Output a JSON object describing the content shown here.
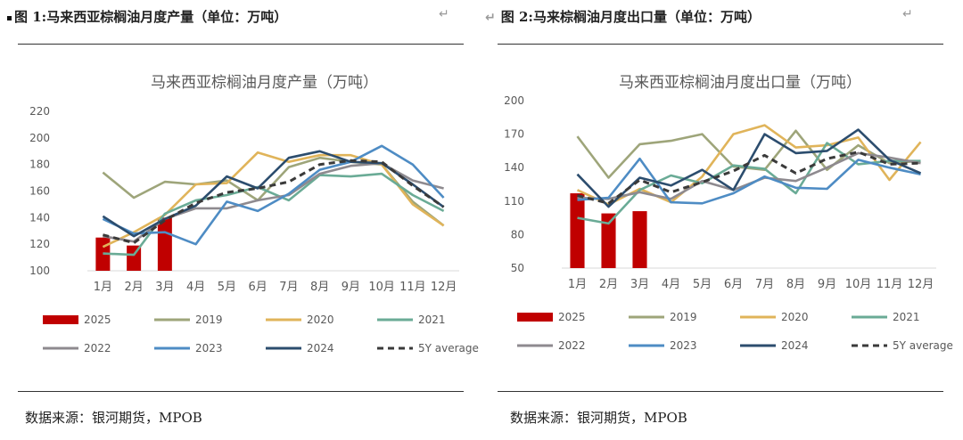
{
  "left": {
    "fig_label": "图 1:",
    "fig_title": "马来西亚棕榈油月度产量（单位：万吨）",
    "source": "数据来源：银河期货，MPOB",
    "ret_mark": "↵"
  },
  "right": {
    "fig_label": "图 2:",
    "fig_title": "马来棕榈油月度出口量（单位：万吨）",
    "source": "数据来源：银河期货，MPOB",
    "ret_mark": "↵"
  },
  "chart_data": [
    {
      "type": "line",
      "title": "马来西亚棕榈油月度产量（万吨）",
      "categories": [
        "1月",
        "2月",
        "3月",
        "4月",
        "5月",
        "6月",
        "7月",
        "8月",
        "9月",
        "10月",
        "11月",
        "12月"
      ],
      "ylim": [
        100,
        220
      ],
      "yticks": [
        100,
        120,
        140,
        160,
        180,
        200,
        220
      ],
      "grid": false,
      "legend_position": "bottom",
      "series": [
        {
          "name": "2025",
          "kind": "bar",
          "color": "#c00000",
          "values": [
            125,
            119,
            140,
            null,
            null,
            null,
            null,
            null,
            null,
            null,
            null,
            null
          ]
        },
        {
          "name": "2019",
          "kind": "line",
          "color": "#9ea57a",
          "values": [
            174,
            155,
            167,
            165,
            168,
            153,
            178,
            185,
            182,
            180,
            152,
            134
          ]
        },
        {
          "name": "2020",
          "kind": "line",
          "color": "#e0b45a",
          "values": [
            118,
            129,
            142,
            165,
            166,
            189,
            182,
            187,
            187,
            180,
            150,
            134
          ]
        },
        {
          "name": "2021",
          "kind": "line",
          "color": "#6aab96",
          "values": [
            113,
            112,
            143,
            153,
            157,
            163,
            153,
            172,
            171,
            173,
            157,
            145
          ]
        },
        {
          "name": "2022",
          "kind": "line",
          "color": "#8e8a8f",
          "values": [
            126,
            122,
            139,
            147,
            147,
            153,
            157,
            173,
            179,
            181,
            168,
            162
          ]
        },
        {
          "name": "2023",
          "kind": "line",
          "color": "#4e8cc4",
          "values": [
            139,
            128,
            129,
            120,
            152,
            145,
            158,
            176,
            182,
            194,
            180,
            155
          ]
        },
        {
          "name": "2024",
          "kind": "line",
          "color": "#2c4d6e",
          "values": [
            141,
            126,
            139,
            149,
            171,
            162,
            185,
            190,
            182,
            181,
            165,
            148
          ]
        },
        {
          "name": "5Y average",
          "kind": "dash",
          "color": "#3a3a3a",
          "values": [
            127,
            121,
            138,
            151,
            159,
            162,
            167,
            180,
            183,
            182,
            164,
            148
          ]
        }
      ]
    },
    {
      "type": "line",
      "title": "马来西亚棕榈油月度出口量（万吨）",
      "categories": [
        "1月",
        "2月",
        "3月",
        "4月",
        "5月",
        "6月",
        "7月",
        "8月",
        "9月",
        "10月",
        "11月",
        "12月"
      ],
      "ylim": [
        50,
        200
      ],
      "yticks": [
        50,
        80,
        110,
        140,
        170,
        200
      ],
      "grid": false,
      "legend_position": "bottom",
      "series": [
        {
          "name": "2025",
          "kind": "bar",
          "color": "#c00000",
          "values": [
            117,
            99,
            101,
            null,
            null,
            null,
            null,
            null,
            null,
            null,
            null,
            null
          ]
        },
        {
          "name": "2019",
          "kind": "line",
          "color": "#9ea57a",
          "values": [
            168,
            131,
            161,
            164,
            170,
            141,
            138,
            173,
            138,
            160,
            144,
            146
          ]
        },
        {
          "name": "2020",
          "kind": "line",
          "color": "#e0b45a",
          "values": [
            120,
            107,
            121,
            109,
            132,
            170,
            178,
            158,
            160,
            167,
            129,
            163
          ]
        },
        {
          "name": "2021",
          "kind": "line",
          "color": "#6aab96",
          "values": [
            95,
            90,
            120,
            133,
            126,
            142,
            139,
            117,
            162,
            143,
            146,
            146
          ]
        },
        {
          "name": "2022",
          "kind": "line",
          "color": "#8e8a8f",
          "values": [
            113,
            112,
            118,
            112,
            128,
            120,
            131,
            128,
            140,
            153,
            149,
            144
          ]
        },
        {
          "name": "2023",
          "kind": "line",
          "color": "#4e8cc4",
          "values": [
            111,
            113,
            148,
            109,
            108,
            117,
            132,
            122,
            121,
            147,
            140,
            134
          ]
        },
        {
          "name": "2024",
          "kind": "line",
          "color": "#2c4d6e",
          "values": [
            134,
            105,
            131,
            124,
            138,
            120,
            170,
            153,
            155,
            174,
            147,
            135
          ]
        },
        {
          "name": "5Y average",
          "kind": "dash",
          "color": "#3a3a3a",
          "values": [
            115,
            108,
            129,
            118,
            127,
            137,
            151,
            135,
            148,
            154,
            143,
            144
          ]
        }
      ]
    }
  ]
}
